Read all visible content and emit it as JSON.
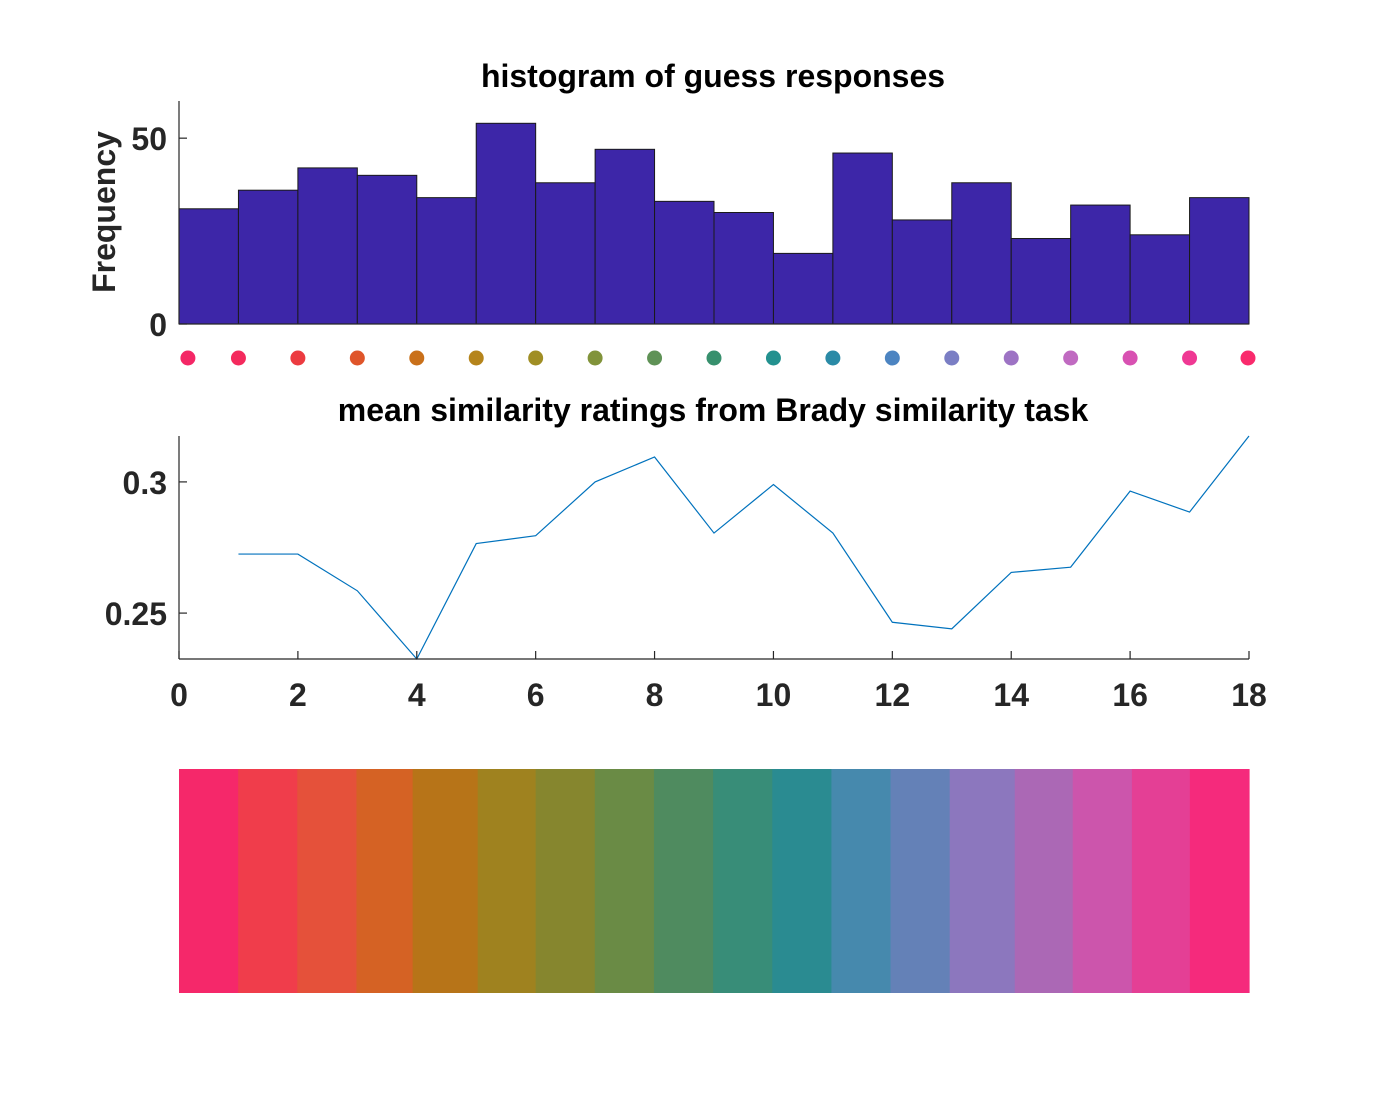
{
  "chart_data": [
    {
      "type": "bar",
      "title": "histogram of guess responses",
      "xlabel": "",
      "ylabel": "Frequency",
      "bar_color": "#3d26a8",
      "bin_edges": [
        0,
        1,
        2,
        3,
        4,
        5,
        6,
        7,
        8,
        9,
        10,
        11,
        12,
        13,
        14,
        15,
        16,
        17,
        18
      ],
      "values": [
        31,
        36,
        42,
        40,
        34,
        54,
        38,
        47,
        33,
        30,
        19,
        46,
        28,
        38,
        23,
        32,
        24,
        34
      ],
      "xlim": [
        0,
        18
      ],
      "ylim": [
        0,
        60
      ],
      "yticks": [
        0,
        50
      ],
      "ytick_labels": [
        "0",
        "50"
      ],
      "marker_positions": [
        0.15,
        1,
        2,
        3,
        4,
        5,
        6,
        7,
        8,
        9,
        10,
        11,
        12,
        13,
        14,
        15,
        16,
        17,
        18
      ],
      "marker_colors": [
        "#f42766",
        "#f42a5d",
        "#ec3b40",
        "#df552a",
        "#c9701a",
        "#b5841b",
        "#a08e24",
        "#81933a",
        "#5f9256",
        "#37906d",
        "#23918f",
        "#2a8aa6",
        "#4c84c1",
        "#7a7ec4",
        "#9d73c4",
        "#c06ac1",
        "#d851b2",
        "#ef3893",
        "#f92a6c"
      ]
    },
    {
      "type": "line",
      "title": "mean similarity ratings from Brady similarity task",
      "xlabel": "",
      "ylabel": "",
      "line_color": "#0072bd",
      "x": [
        1,
        2,
        3,
        4,
        5,
        6,
        7,
        8,
        9,
        10,
        11,
        12,
        13,
        14,
        15,
        16,
        17,
        18
      ],
      "y": [
        0.2725,
        0.2725,
        0.2585,
        0.2325,
        0.2765,
        0.2795,
        0.3,
        0.3095,
        0.2805,
        0.299,
        0.2805,
        0.2465,
        0.244,
        0.2655,
        0.2675,
        0.2965,
        0.2885,
        0.3175
      ],
      "xlim": [
        0,
        18
      ],
      "ylim": [
        0.2325,
        0.3175
      ],
      "xticks": [
        0,
        2,
        4,
        6,
        8,
        10,
        12,
        14,
        16,
        18
      ],
      "xtick_labels": [
        "0",
        "2",
        "4",
        "6",
        "8",
        "10",
        "12",
        "14",
        "16",
        "18"
      ],
      "yticks": [
        0.25,
        0.3
      ],
      "ytick_labels": [
        "0.25",
        "0.3"
      ]
    },
    {
      "type": "heatmap",
      "title": "",
      "colors": [
        "#f5286a",
        "#f03d4b",
        "#e5513a",
        "#d56224",
        "#b77418",
        "#9f821f",
        "#86862e",
        "#6a8b45",
        "#4f8b5f",
        "#388d78",
        "#2a8b91",
        "#4689ad",
        "#6481b7",
        "#8c77be",
        "#ab68b5",
        "#cc55ac",
        "#e43f95",
        "#f52a7c"
      ],
      "column_weights": [
        1,
        1,
        1,
        0.95,
        1.1,
        0.98,
        1,
        1,
        1,
        1,
        1,
        1,
        1,
        1.1,
        0.98,
        1,
        0.98,
        1
      ]
    }
  ]
}
